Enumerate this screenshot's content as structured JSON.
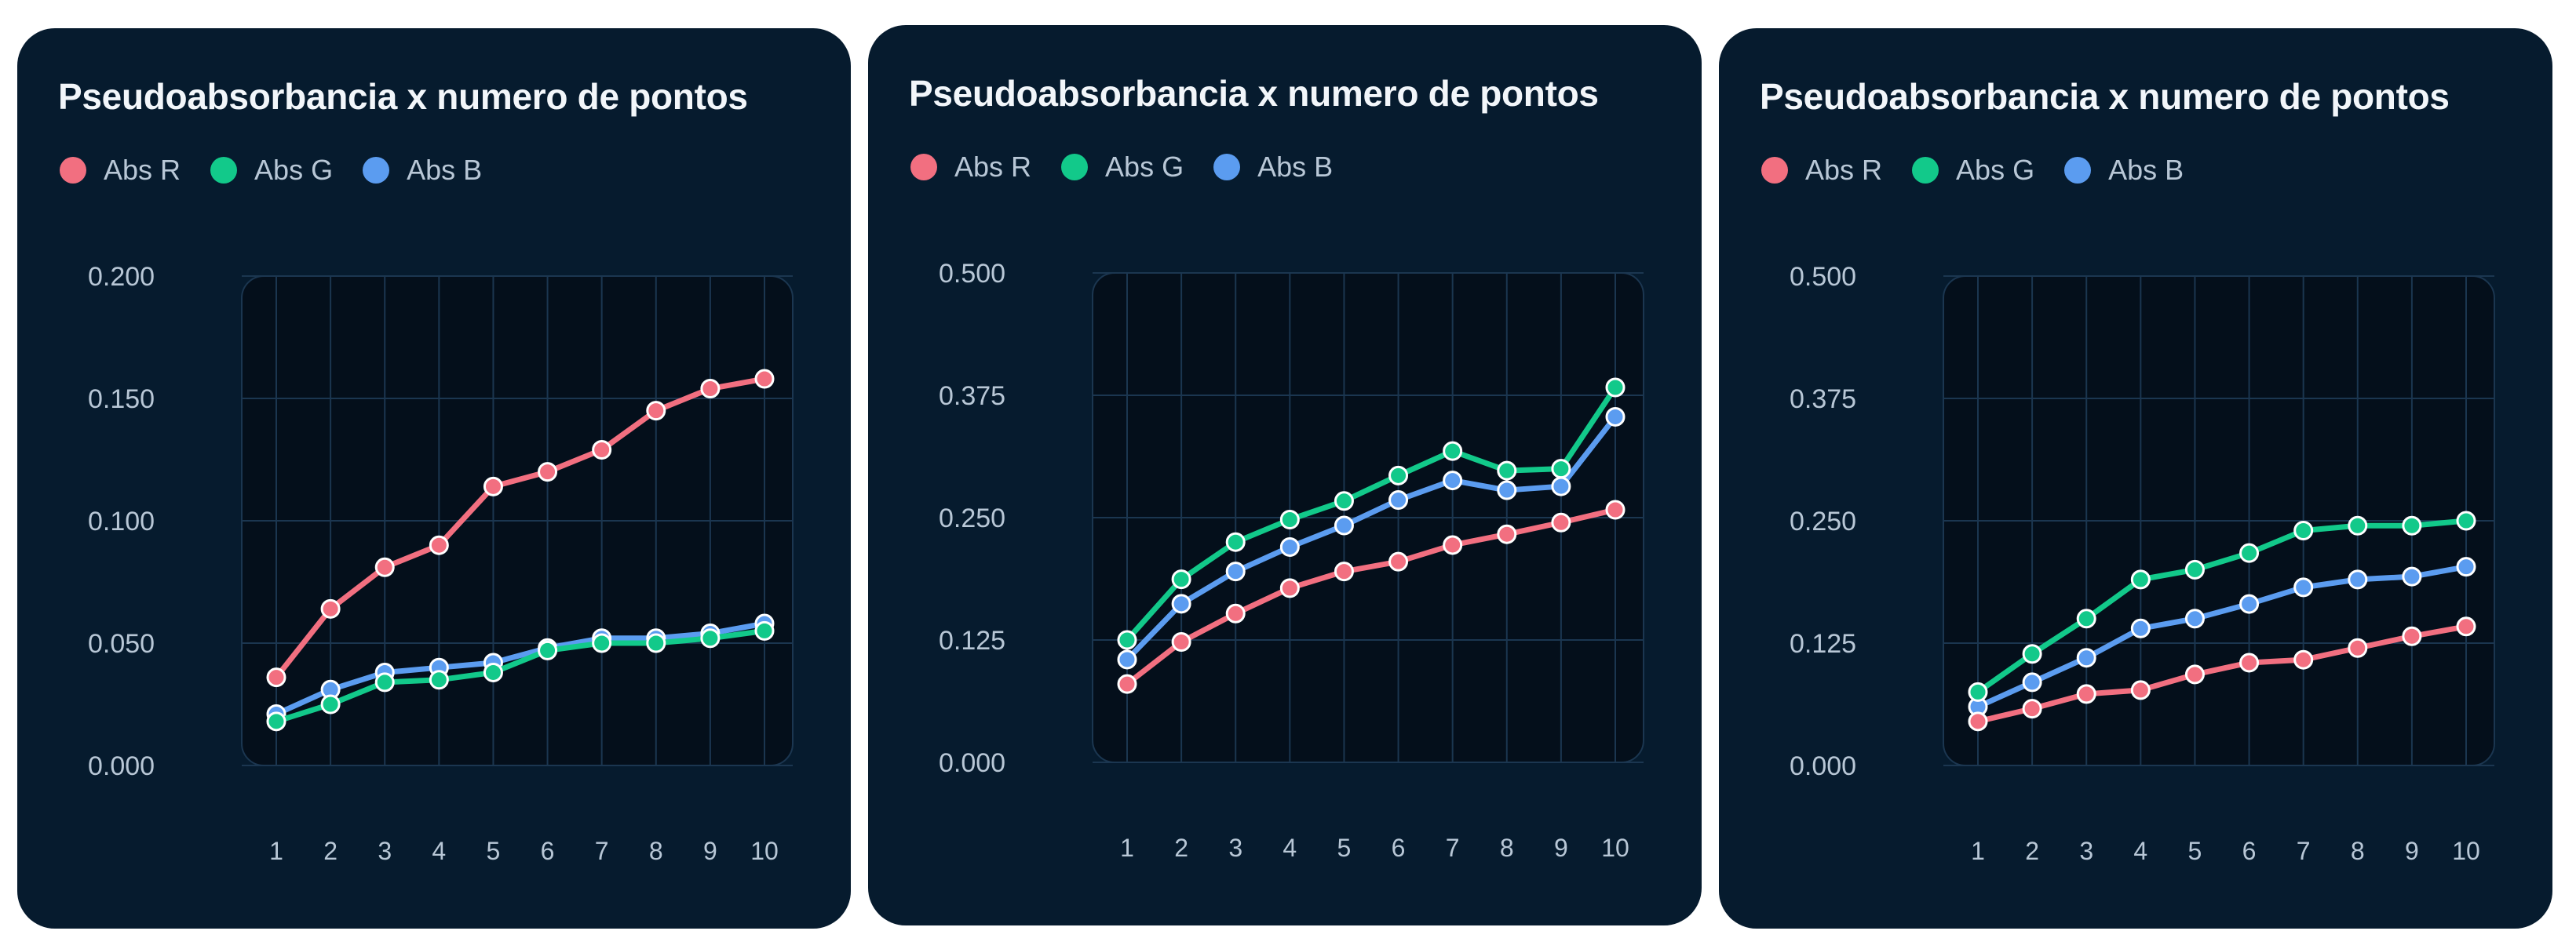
{
  "colors": {
    "card_bg": "#061b2e",
    "plot_bg": "#040f1b",
    "grid": "#1b3650",
    "abs_r": "#f26f80",
    "abs_g": "#12c98a",
    "abs_b": "#5b9cf0"
  },
  "legend": [
    {
      "label": "Abs R",
      "color": "#f26f80"
    },
    {
      "label": "Abs G",
      "color": "#12c98a"
    },
    {
      "label": "Abs B",
      "color": "#5b9cf0"
    }
  ],
  "chart_data": [
    {
      "type": "line",
      "title": "Pseudoabsorbancia x numero de pontos",
      "legend_position": "top-left",
      "grid": true,
      "x": [
        1,
        2,
        3,
        4,
        5,
        6,
        7,
        8,
        9,
        10
      ],
      "ylim": [
        0,
        0.2
      ],
      "yticks": [
        "0.200",
        "0.150",
        "0.100",
        "0.050",
        "0.000"
      ],
      "series": [
        {
          "name": "Abs R",
          "color": "#f26f80",
          "values": [
            0.036,
            0.064,
            0.081,
            0.09,
            0.114,
            0.12,
            0.129,
            0.145,
            0.154,
            0.158
          ]
        },
        {
          "name": "Abs G",
          "color": "#12c98a",
          "values": [
            0.018,
            0.025,
            0.034,
            0.035,
            0.038,
            0.047,
            0.05,
            0.05,
            0.052,
            0.055
          ]
        },
        {
          "name": "Abs B",
          "color": "#5b9cf0",
          "values": [
            0.021,
            0.031,
            0.038,
            0.04,
            0.042,
            0.048,
            0.052,
            0.052,
            0.054,
            0.058
          ]
        }
      ]
    },
    {
      "type": "line",
      "title": "Pseudoabsorbancia x numero de pontos",
      "legend_position": "top-left",
      "grid": true,
      "x": [
        1,
        2,
        3,
        4,
        5,
        6,
        7,
        8,
        9,
        10
      ],
      "ylim": [
        0,
        0.5
      ],
      "yticks": [
        "0.500",
        "0.375",
        "0.250",
        "0.125",
        "0.000"
      ],
      "series": [
        {
          "name": "Abs R",
          "color": "#f26f80",
          "values": [
            0.08,
            0.123,
            0.152,
            0.178,
            0.195,
            0.205,
            0.222,
            0.233,
            0.245,
            0.258
          ]
        },
        {
          "name": "Abs G",
          "color": "#12c98a",
          "values": [
            0.125,
            0.187,
            0.225,
            0.248,
            0.267,
            0.293,
            0.318,
            0.298,
            0.3,
            0.383
          ]
        },
        {
          "name": "Abs B",
          "color": "#5b9cf0",
          "values": [
            0.105,
            0.162,
            0.195,
            0.22,
            0.242,
            0.268,
            0.288,
            0.278,
            0.282,
            0.353
          ]
        }
      ]
    },
    {
      "type": "line",
      "title": "Pseudoabsorbancia x numero de pontos",
      "legend_position": "top-left",
      "grid": true,
      "x": [
        1,
        2,
        3,
        4,
        5,
        6,
        7,
        8,
        9,
        10
      ],
      "ylim": [
        0,
        0.5
      ],
      "yticks": [
        "0.500",
        "0.375",
        "0.250",
        "0.125",
        "0.000"
      ],
      "series": [
        {
          "name": "Abs R",
          "color": "#f26f80",
          "values": [
            0.045,
            0.058,
            0.073,
            0.077,
            0.093,
            0.105,
            0.108,
            0.12,
            0.132,
            0.142
          ]
        },
        {
          "name": "Abs G",
          "color": "#12c98a",
          "values": [
            0.075,
            0.114,
            0.15,
            0.19,
            0.2,
            0.217,
            0.24,
            0.245,
            0.245,
            0.25
          ]
        },
        {
          "name": "Abs B",
          "color": "#5b9cf0",
          "values": [
            0.06,
            0.085,
            0.11,
            0.14,
            0.15,
            0.165,
            0.182,
            0.19,
            0.193,
            0.203
          ]
        }
      ]
    }
  ]
}
